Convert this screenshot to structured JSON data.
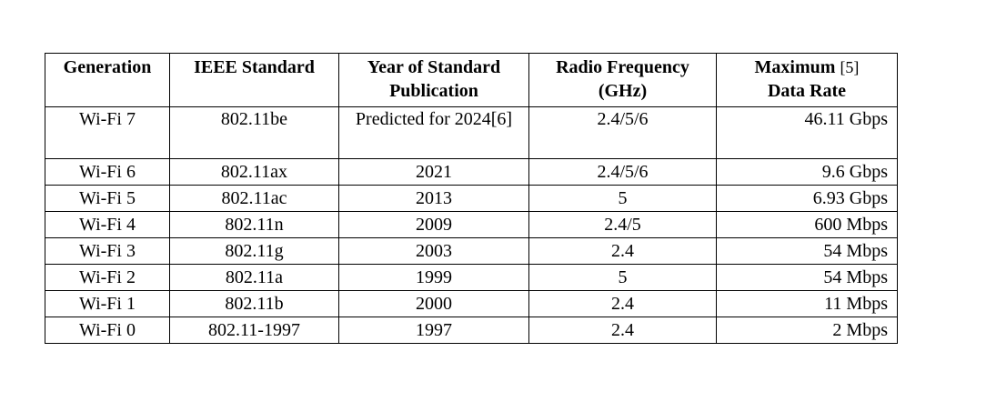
{
  "table": {
    "header": [
      "Generation",
      "IEEE Standard",
      "Year of Standard Publication",
      "Radio Frequency (GHz)",
      {
        "label_start": "Maximum",
        "note": "[5]",
        "label_end": "Data Rate"
      }
    ],
    "rows": [
      [
        "Wi-Fi 7",
        "802.11be",
        "Predicted for 2024[6]",
        "2.4/5/6",
        "46.11 Gbps"
      ],
      [
        "Wi-Fi 6",
        "802.11ax",
        "2021",
        "2.4/5/6",
        "9.6 Gbps"
      ],
      [
        "Wi-Fi 5",
        "802.11ac",
        "2013",
        "5",
        "6.93 Gbps"
      ],
      [
        "Wi-Fi 4",
        "802.11n",
        "2009",
        "2.4/5",
        "600 Mbps"
      ],
      [
        "Wi-Fi 3",
        "802.11g",
        "2003",
        "2.4",
        "54 Mbps"
      ],
      [
        "Wi-Fi 2",
        "802.11a",
        "1999",
        "5",
        "54 Mbps"
      ],
      [
        "Wi-Fi 1",
        "802.11b",
        "2000",
        "2.4",
        "11 Mbps"
      ],
      [
        "Wi-Fi 0",
        "802.11-1997",
        "1997",
        "2.4",
        "2 Mbps"
      ]
    ]
  }
}
